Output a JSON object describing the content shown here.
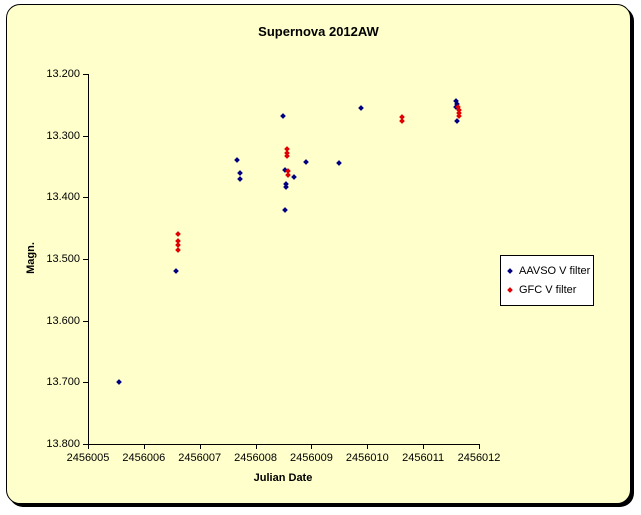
{
  "chart_data": {
    "type": "scatter",
    "title": "Supernova 2012AW",
    "xlabel": "Julian Date",
    "ylabel": "Magn.",
    "xlim": [
      2456005,
      2456012
    ],
    "ylim": [
      13.2,
      13.8
    ],
    "y_axis_inverted_display": "13.200 at top, 13.800 at bottom",
    "grid": "off",
    "plot_bg_color": "#FFFFCC",
    "legend_position": "middle-right",
    "x_ticks": [
      "2456005",
      "2456006",
      "2456007",
      "2456008",
      "2456009",
      "2456010",
      "2456011",
      "2456012"
    ],
    "y_ticks": [
      "13.200",
      "13.300",
      "13.400",
      "13.500",
      "13.600",
      "13.700",
      "13.800"
    ],
    "series": [
      {
        "name": "AAVSO V filter",
        "color": "#000080",
        "marker": "diamond",
        "points": [
          [
            2456005.55,
            13.7
          ],
          [
            2456006.57,
            13.52
          ],
          [
            2456007.66,
            13.34
          ],
          [
            2456007.73,
            13.36
          ],
          [
            2456007.73,
            13.37
          ],
          [
            2456008.49,
            13.268
          ],
          [
            2456008.52,
            13.356
          ],
          [
            2456008.54,
            13.379
          ],
          [
            2456008.54,
            13.384
          ],
          [
            2456008.53,
            13.42
          ],
          [
            2456008.68,
            13.367
          ],
          [
            2456008.9,
            13.343
          ],
          [
            2456009.5,
            13.345
          ],
          [
            2456009.89,
            13.255
          ],
          [
            2456011.59,
            13.243
          ],
          [
            2456011.6,
            13.248
          ],
          [
            2456011.59,
            13.253
          ],
          [
            2456011.6,
            13.277
          ]
        ]
      },
      {
        "name": "GFC V filter",
        "color": "#E00000",
        "marker": "diamond",
        "points": [
          [
            2456006.62,
            13.46
          ],
          [
            2456006.62,
            13.471
          ],
          [
            2456006.62,
            13.477
          ],
          [
            2456006.62,
            13.485
          ],
          [
            2456008.56,
            13.322
          ],
          [
            2456008.56,
            13.328
          ],
          [
            2456008.57,
            13.333
          ],
          [
            2456008.58,
            13.358
          ],
          [
            2456008.58,
            13.363
          ],
          [
            2456010.62,
            13.27
          ],
          [
            2456010.63,
            13.276
          ],
          [
            2456011.63,
            13.253
          ],
          [
            2456011.64,
            13.258
          ],
          [
            2456011.64,
            13.263
          ],
          [
            2456011.64,
            13.268
          ]
        ]
      }
    ]
  }
}
